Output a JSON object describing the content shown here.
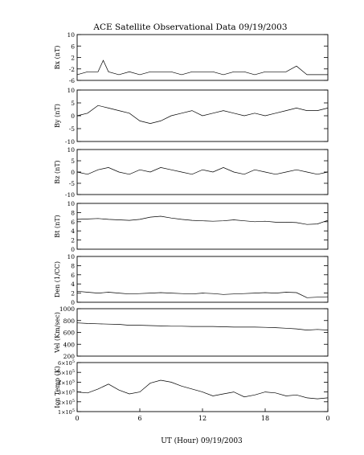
{
  "chart_data": {
    "type": "line",
    "title": "ACE Satellite Observational Data   09/19/2003",
    "xlabel": "UT (Hour)   09/19/2003",
    "x_ticks": [
      "0",
      "6",
      "12",
      "18",
      "0"
    ],
    "x_range_hours": [
      0,
      24
    ],
    "grid": false,
    "panels": [
      {
        "key": "bx",
        "ylabel": "Bx (nT)",
        "ylim": [
          -6,
          10
        ],
        "scale": "linear",
        "yticks": [
          {
            "v": 10,
            "label": "10"
          },
          {
            "v": 6,
            "label": "6"
          },
          {
            "v": 2,
            "label": "2"
          },
          {
            "v": -2,
            "label": "-2"
          },
          {
            "v": -6,
            "label": "-6"
          }
        ],
        "series": [
          {
            "x": [
              0,
              1,
              2,
              2.5,
              3,
              4,
              5,
              6,
              7,
              8,
              9,
              10,
              11,
              12,
              13,
              14,
              15,
              16,
              17,
              18,
              19,
              20,
              21,
              22,
              23,
              24
            ],
            "y": [
              -4,
              -3,
              -3,
              1,
              -3,
              -4,
              -3,
              -4,
              -3,
              -3,
              -3,
              -4,
              -3,
              -3,
              -3,
              -4,
              -3,
              -3,
              -4,
              -3,
              -3,
              -3,
              -1,
              -4,
              -4,
              -4
            ]
          }
        ]
      },
      {
        "key": "by",
        "ylabel": "By (nT)",
        "ylim": [
          -10,
          10
        ],
        "scale": "linear",
        "yticks": [
          {
            "v": 10,
            "label": "10"
          },
          {
            "v": 5,
            "label": "5"
          },
          {
            "v": 0,
            "label": "0"
          },
          {
            "v": -5,
            "label": "-5"
          },
          {
            "v": -10,
            "label": "-10"
          }
        ],
        "series": [
          {
            "x": [
              0,
              1,
              2,
              3,
              4,
              5,
              6,
              7,
              8,
              9,
              10,
              11,
              12,
              13,
              14,
              15,
              16,
              17,
              18,
              19,
              20,
              21,
              22,
              23,
              24
            ],
            "y": [
              0,
              1,
              4,
              3,
              2,
              1,
              -2,
              -3,
              -2,
              0,
              1,
              2,
              0,
              1,
              2,
              1,
              0,
              1,
              0,
              1,
              2,
              3,
              2,
              2,
              3
            ]
          }
        ]
      },
      {
        "key": "bz",
        "ylabel": "Bz (nT)",
        "ylim": [
          -10,
          10
        ],
        "scale": "linear",
        "yticks": [
          {
            "v": 10,
            "label": "10"
          },
          {
            "v": 5,
            "label": "5"
          },
          {
            "v": 0,
            "label": "0"
          },
          {
            "v": -5,
            "label": "-5"
          },
          {
            "v": -10,
            "label": "-10"
          }
        ],
        "series": [
          {
            "x": [
              0,
              1,
              2,
              3,
              4,
              5,
              6,
              7,
              8,
              9,
              10,
              11,
              12,
              13,
              14,
              15,
              16,
              17,
              18,
              19,
              20,
              21,
              22,
              23,
              24
            ],
            "y": [
              0,
              -1,
              1,
              2,
              0,
              -1,
              1,
              0,
              2,
              1,
              0,
              -1,
              1,
              0,
              2,
              0,
              -1,
              1,
              0,
              -1,
              0,
              1,
              0,
              -1,
              0
            ]
          }
        ]
      },
      {
        "key": "bt",
        "ylabel": "Bt (nT)",
        "ylim": [
          0,
          10
        ],
        "scale": "linear",
        "yticks": [
          {
            "v": 10,
            "label": "10"
          },
          {
            "v": 8,
            "label": "8"
          },
          {
            "v": 6,
            "label": "6"
          },
          {
            "v": 4,
            "label": "4"
          },
          {
            "v": 2,
            "label": "2"
          },
          {
            "v": 0,
            "label": "0"
          }
        ],
        "series": [
          {
            "x": [
              0,
              1,
              2,
              3,
              4,
              5,
              6,
              7,
              8,
              9,
              10,
              11,
              12,
              13,
              14,
              15,
              16,
              17,
              18,
              19,
              20,
              21,
              22,
              23,
              24
            ],
            "y": [
              6.5,
              6.6,
              6.7,
              6.5,
              6.4,
              6.3,
              6.5,
              7,
              7.2,
              6.8,
              6.5,
              6.3,
              6.2,
              6.1,
              6.2,
              6.4,
              6.2,
              6,
              6.1,
              5.9,
              5.9,
              5.8,
              5.4,
              5.5,
              6.3
            ]
          }
        ]
      },
      {
        "key": "den",
        "ylabel": "Den (1/CC)",
        "ylim": [
          0,
          10
        ],
        "scale": "linear",
        "yticks": [
          {
            "v": 10,
            "label": "10"
          },
          {
            "v": 8,
            "label": "8"
          },
          {
            "v": 6,
            "label": "6"
          },
          {
            "v": 4,
            "label": "4"
          },
          {
            "v": 2,
            "label": "2"
          },
          {
            "v": 0,
            "label": "0"
          }
        ],
        "series": [
          {
            "x": [
              0,
              1,
              2,
              3,
              4,
              5,
              6,
              7,
              8,
              9,
              10,
              11,
              12,
              13,
              14,
              15,
              16,
              17,
              18,
              19,
              20,
              21,
              22,
              23,
              24
            ],
            "y": [
              2.4,
              2.2,
              2,
              2.2,
              2,
              1.8,
              1.9,
              2,
              2.1,
              2,
              1.9,
              1.8,
              2,
              1.9,
              1.7,
              1.8,
              1.9,
              2,
              2.1,
              2,
              2.2,
              2.1,
              1,
              1.1,
              1.2
            ]
          }
        ]
      },
      {
        "key": "vel",
        "ylabel": "Vel (Km/sec)",
        "ylim": [
          200,
          1000
        ],
        "scale": "linear",
        "yticks": [
          {
            "v": 1000,
            "label": "1000"
          },
          {
            "v": 800,
            "label": "800"
          },
          {
            "v": 600,
            "label": "600"
          },
          {
            "v": 400,
            "label": "400"
          },
          {
            "v": 200,
            "label": "200"
          }
        ],
        "series": [
          {
            "x": [
              0,
              1,
              2,
              3,
              4,
              5,
              6,
              7,
              8,
              9,
              10,
              11,
              12,
              13,
              14,
              15,
              16,
              17,
              18,
              19,
              20,
              21,
              22,
              23,
              24
            ],
            "y": [
              760,
              750,
              745,
              740,
              735,
              720,
              720,
              715,
              710,
              705,
              705,
              700,
              700,
              700,
              695,
              690,
              690,
              690,
              685,
              680,
              670,
              660,
              640,
              650,
              640
            ]
          }
        ]
      },
      {
        "key": "temp",
        "ylabel": "Ion Temp (K)",
        "ylim": [
          100000,
          600000
        ],
        "scale": "linear",
        "yticks": [
          {
            "v": 600000,
            "label": "6×10",
            "exp": "5"
          },
          {
            "v": 500000,
            "label": "5×10",
            "exp": "5"
          },
          {
            "v": 400000,
            "label": "4×10",
            "exp": "5"
          },
          {
            "v": 300000,
            "label": "3×10",
            "exp": "5"
          },
          {
            "v": 200000,
            "label": "2×10",
            "exp": "5"
          },
          {
            "v": 100000,
            "label": "1×10",
            "exp": "5"
          }
        ],
        "series": [
          {
            "x": [
              0,
              1,
              2,
              3,
              4,
              5,
              6,
              7,
              8,
              9,
              10,
              11,
              12,
              13,
              14,
              15,
              16,
              17,
              18,
              19,
              20,
              21,
              22,
              23,
              24
            ],
            "y": [
              300000,
              290000,
              330000,
              380000,
              320000,
              280000,
              300000,
              390000,
              420000,
              400000,
              360000,
              330000,
              300000,
              260000,
              280000,
              300000,
              250000,
              270000,
              300000,
              290000,
              260000,
              270000,
              240000,
              230000,
              240000
            ]
          }
        ]
      }
    ]
  }
}
